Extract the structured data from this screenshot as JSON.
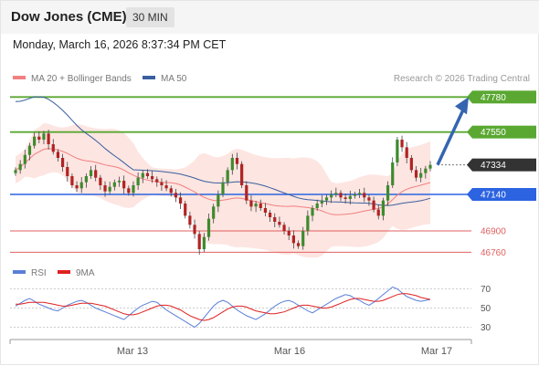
{
  "header": {
    "instrument": "Dow Jones (CME)",
    "timeframe": "30 MIN",
    "datetime": "Monday, March 16, 2026 8:37:34 PM CET"
  },
  "legend": {
    "bollinger": "MA 20 + Bollinger Bands",
    "ma50": "MA 50",
    "credit": "Research © 2026 Trading Central",
    "rsi": "RSI",
    "ma9": "9MA"
  },
  "colors": {
    "resistance": "#5aa832",
    "current": "#333333",
    "pivot": "#2b63e0",
    "support": "#e06060",
    "bollinger_fill": "#fde0dc",
    "ma20": "#f08080",
    "ma50": "#3a5fa0",
    "arrow": "#3565b0",
    "rsi": "#5a7fd8",
    "rsi_ma": "#e02020"
  },
  "chart_data": [
    {
      "type": "candlestick",
      "title": "Dow Jones (CME)",
      "x_ticks": [
        "Mar 13",
        "Mar 16",
        "Mar 17"
      ],
      "levels": [
        {
          "value": 47780,
          "label": "47780",
          "kind": "resistance"
        },
        {
          "value": 47550,
          "label": "47550",
          "kind": "resistance"
        },
        {
          "value": 47334,
          "label": "47334",
          "kind": "current"
        },
        {
          "value": 47140,
          "label": "47140",
          "kind": "pivot"
        },
        {
          "value": 46900,
          "label": "46900",
          "kind": "support"
        },
        {
          "value": 46760,
          "label": "46760",
          "kind": "support"
        }
      ],
      "ylim": [
        46720,
        47830
      ],
      "candles_close": [
        47300,
        47340,
        47400,
        47460,
        47520,
        47500,
        47540,
        47470,
        47420,
        47380,
        47320,
        47260,
        47200,
        47180,
        47220,
        47260,
        47300,
        47250,
        47200,
        47160,
        47190,
        47220,
        47230,
        47180,
        47150,
        47200,
        47250,
        47280,
        47260,
        47240,
        47220,
        47200,
        47180,
        47150,
        47120,
        47080,
        47000,
        46940,
        46880,
        46780,
        46860,
        46980,
        47060,
        47140,
        47220,
        47300,
        47380,
        47340,
        47200,
        47100,
        47060,
        47080,
        47050,
        47020,
        46990,
        46960,
        46940,
        46900,
        46870,
        46820,
        46800,
        46900,
        47000,
        47050,
        47080,
        47100,
        47120,
        47140,
        47150,
        47120,
        47110,
        47130,
        47140,
        47150,
        47120,
        47100,
        47040,
        47000,
        47100,
        47200,
        47350,
        47500,
        47450,
        47380,
        47300,
        47250,
        47280,
        47310,
        47334
      ],
      "series": [
        {
          "name": "MA 20 + Bollinger Bands"
        },
        {
          "name": "MA 50"
        }
      ],
      "forecast_arrow": {
        "from": 47334,
        "to": 47780
      }
    },
    {
      "type": "line",
      "title": "RSI",
      "y_ticks": [
        70,
        50,
        30
      ],
      "ylim": [
        20,
        80
      ],
      "series": [
        {
          "name": "RSI",
          "values": [
            52,
            55,
            58,
            60,
            57,
            54,
            52,
            50,
            48,
            47,
            50,
            53,
            55,
            57,
            58,
            56,
            53,
            50,
            48,
            46,
            44,
            42,
            40,
            38,
            42,
            46,
            50,
            53,
            55,
            57,
            56,
            52,
            48,
            45,
            42,
            39,
            36,
            33,
            30,
            34,
            40,
            46,
            52,
            56,
            58,
            56,
            52,
            48,
            45,
            42,
            40,
            38,
            41,
            44,
            48,
            52,
            55,
            57,
            58,
            56,
            53,
            50,
            47,
            45,
            48,
            51,
            54,
            57,
            60,
            62,
            64,
            63,
            60,
            58,
            55,
            53,
            56,
            60,
            64,
            68,
            72,
            70,
            66,
            62,
            60,
            58,
            57,
            58,
            59
          ]
        },
        {
          "name": "9MA",
          "values": [
            54,
            54,
            55,
            56,
            56,
            56,
            56,
            55,
            54,
            53,
            52,
            52,
            53,
            54,
            55,
            55,
            55,
            54,
            53,
            52,
            50,
            48,
            46,
            44,
            43,
            43,
            44,
            46,
            48,
            50,
            52,
            53,
            53,
            52,
            50,
            48,
            45,
            42,
            40,
            38,
            37,
            38,
            40,
            43,
            46,
            49,
            51,
            52,
            52,
            51,
            49,
            47,
            46,
            45,
            44,
            44,
            45,
            46,
            48,
            50,
            52,
            53,
            53,
            52,
            51,
            50,
            50,
            51,
            53,
            55,
            57,
            59,
            60,
            60,
            59,
            58,
            57,
            57,
            58,
            60,
            62,
            64,
            65,
            65,
            64,
            63,
            61,
            60,
            59
          ]
        }
      ]
    }
  ]
}
